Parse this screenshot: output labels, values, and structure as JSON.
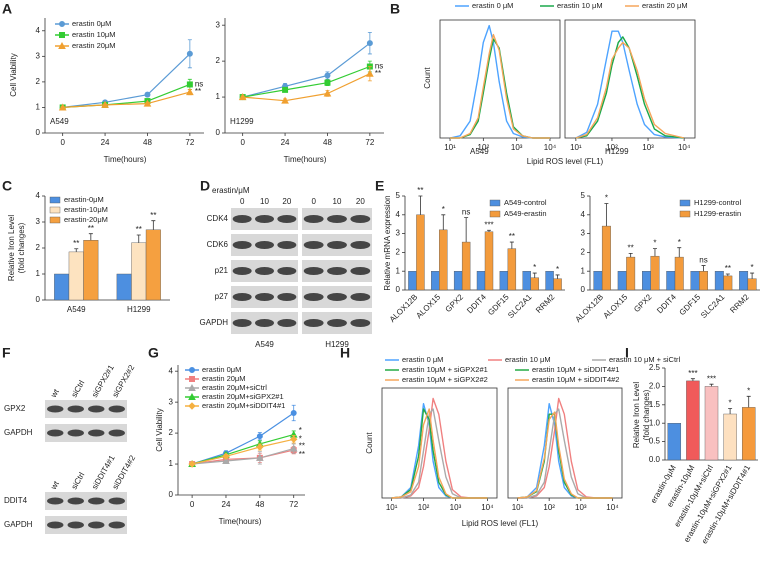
{
  "chart_data": [
    {
      "type": "line",
      "panel": "A",
      "subtitle": "A549",
      "xlabel": "Time(hours)",
      "ylabel": "Cell Viability",
      "x": [
        0,
        24,
        48,
        72
      ],
      "xlim": [
        -10,
        80
      ],
      "xticks": [
        0,
        24,
        48,
        72
      ],
      "ylim": [
        0,
        4.5
      ],
      "yticks": [
        0,
        1,
        2,
        3,
        4
      ],
      "series": [
        {
          "name": "erastin 0μM",
          "color": "#5b9bd5",
          "marker": "circle",
          "values": [
            1,
            1.2,
            1.5,
            3.1
          ],
          "errors": [
            0.03,
            0.05,
            0.08,
            0.55
          ]
        },
        {
          "name": "erastin 10μM",
          "color": "#33cc33",
          "marker": "square",
          "values": [
            1,
            1.1,
            1.25,
            1.9
          ],
          "errors": [
            0.03,
            0.05,
            0.06,
            0.2
          ],
          "significance": "ns"
        },
        {
          "name": "erastin 20μM",
          "color": "#f0a030",
          "marker": "triangle",
          "values": [
            1,
            1.1,
            1.15,
            1.6
          ],
          "errors": [
            0.03,
            0.04,
            0.05,
            0.1
          ],
          "significance": "**"
        }
      ]
    },
    {
      "type": "line",
      "subtitle": "H1299",
      "xlabel": "Time(hours)",
      "x": [
        0,
        24,
        48,
        72
      ],
      "xlim": [
        -10,
        80
      ],
      "xticks": [
        0,
        24,
        48,
        72
      ],
      "ylim": [
        0,
        3.2
      ],
      "yticks": [
        0,
        1,
        2,
        3
      ],
      "series": [
        {
          "color": "#5b9bd5",
          "marker": "circle",
          "values": [
            1,
            1.3,
            1.6,
            2.5
          ],
          "errors": [
            0.03,
            0.08,
            0.1,
            0.3
          ]
        },
        {
          "color": "#33cc33",
          "marker": "square",
          "values": [
            1,
            1.2,
            1.4,
            1.85
          ],
          "errors": [
            0.03,
            0.05,
            0.08,
            0.15
          ],
          "significance": "ns"
        },
        {
          "color": "#f0a030",
          "marker": "triangle",
          "values": [
            1,
            0.9,
            1.1,
            1.65
          ],
          "errors": [
            0.03,
            0.05,
            0.08,
            0.2
          ],
          "significance": "**"
        }
      ]
    },
    {
      "type": "line",
      "panel": "B",
      "subtitle": "A549",
      "xlabel": "Lipid ROS level (FL1)",
      "ylabel": "Count",
      "xscale": "log",
      "frame": true,
      "x": [
        10,
        20,
        40,
        70,
        100,
        150,
        200,
        300,
        500,
        800,
        1500,
        3000,
        10000
      ],
      "xlim": [
        5,
        20000
      ],
      "xticks": [
        {
          "value": 10,
          "label": "10¹"
        },
        {
          "value": 100,
          "label": "10²"
        },
        {
          "value": 1000,
          "label": "10³"
        },
        {
          "value": 10000,
          "label": "10⁴"
        }
      ],
      "ylim": [
        0,
        105
      ],
      "series": [
        {
          "name": "erastin 0 μM",
          "color": "#4da3ff",
          "values": [
            0,
            2,
            15,
            55,
            85,
            100,
            85,
            50,
            15,
            4,
            1,
            0,
            0
          ]
        },
        {
          "name": "erastin 10 μM",
          "color": "#1aa84a",
          "values": [
            0,
            0,
            3,
            15,
            40,
            70,
            88,
            80,
            40,
            10,
            2,
            0,
            0
          ]
        },
        {
          "name": "erastin 20 μM",
          "color": "#f5a55a",
          "values": [
            0,
            0,
            4,
            18,
            45,
            75,
            92,
            78,
            35,
            8,
            2,
            0,
            0
          ]
        }
      ]
    },
    {
      "type": "line",
      "subtitle": "H1299",
      "xscale": "log",
      "frame": true,
      "x": [
        10,
        20,
        40,
        70,
        100,
        150,
        200,
        300,
        500,
        800,
        1500,
        3000,
        10000
      ],
      "xlim": [
        5,
        20000
      ],
      "xticks": [
        {
          "value": 10,
          "label": "10¹"
        },
        {
          "value": 100,
          "label": "10²"
        },
        {
          "value": 1000,
          "label": "10³"
        },
        {
          "value": 10000,
          "label": "10⁴"
        }
      ],
      "ylim": [
        0,
        105
      ],
      "series": [
        {
          "color": "#4da3ff",
          "values": [
            0,
            5,
            30,
            70,
            95,
            95,
            85,
            60,
            30,
            12,
            3,
            1,
            0
          ]
        },
        {
          "color": "#1aa84a",
          "values": [
            0,
            2,
            15,
            40,
            65,
            85,
            90,
            80,
            55,
            30,
            8,
            2,
            0
          ]
        },
        {
          "color": "#f5a55a",
          "values": [
            0,
            3,
            18,
            45,
            70,
            80,
            85,
            80,
            60,
            35,
            12,
            4,
            0
          ]
        }
      ]
    },
    {
      "type": "bar",
      "panel": "C",
      "ylabel": [
        "Relative Iron Level",
        "(fold changes)"
      ],
      "categories": [
        "A549",
        "H1299"
      ],
      "ylim": [
        0,
        4
      ],
      "yticks": [
        0,
        1,
        2,
        3,
        4
      ],
      "series": [
        {
          "name": "erastin-0μM",
          "color": "#4d8fe0",
          "values": [
            1,
            1
          ]
        },
        {
          "name": "erastin-10μM",
          "color": "#fde3c0",
          "values": [
            1.85,
            2.2
          ],
          "errors": [
            0.12,
            0.3
          ],
          "significance": [
            "**",
            "**"
          ]
        },
        {
          "name": "erastin-20μM",
          "color": "#f5a040",
          "values": [
            2.3,
            2.7
          ],
          "errors": [
            0.25,
            0.35
          ],
          "significance": [
            "**",
            "**"
          ]
        }
      ]
    },
    {
      "type": "bar",
      "panel": "E",
      "ylabel": "Relative mRNA expression",
      "categories": [
        "ALOX12B",
        "ALOX15",
        "GPX2",
        "DDIT4",
        "GDF15",
        "SLC2A1",
        "RRM2"
      ],
      "ylim": [
        0,
        5
      ],
      "yticks": [
        0,
        1,
        2,
        3,
        4,
        5
      ],
      "series": [
        {
          "name": "A549-control",
          "color": "#4d8fe0",
          "values": [
            1,
            1,
            1,
            1,
            1,
            1,
            1
          ]
        },
        {
          "name": "A549-erastin",
          "color": "#f39b3c",
          "values": [
            4,
            3.2,
            2.55,
            3.1,
            2.2,
            0.65,
            0.6
          ],
          "errors": [
            1.0,
            0.8,
            1.3,
            0.08,
            0.35,
            0.25,
            0.2
          ],
          "significance": [
            "**",
            "*",
            "ns",
            "***",
            "**",
            "*",
            "*"
          ]
        }
      ]
    },
    {
      "type": "bar",
      "categories": [
        "ALOX12B",
        "ALOX15",
        "GPX2",
        "DDIT4",
        "GDF15",
        "SLC2A1",
        "RRM2"
      ],
      "ylim": [
        0,
        5
      ],
      "yticks": [
        0,
        1,
        2,
        3,
        4,
        5
      ],
      "series": [
        {
          "name": "H1299-control",
          "color": "#4d8fe0",
          "values": [
            1,
            1,
            1,
            1,
            1,
            1,
            1
          ]
        },
        {
          "name": "H1299-erastin",
          "color": "#f39b3c",
          "values": [
            3.4,
            1.75,
            1.8,
            1.75,
            1.0,
            0.75,
            0.6
          ],
          "errors": [
            1.2,
            0.2,
            0.4,
            0.5,
            0.3,
            0.1,
            0.3
          ],
          "significance": [
            "*",
            "**",
            "*",
            "*",
            "ns",
            "**",
            "*"
          ]
        }
      ]
    },
    {
      "type": "line",
      "panel": "G",
      "xlabel": "Time(hours)",
      "ylabel": "Cell Viability",
      "x": [
        0,
        24,
        48,
        72
      ],
      "xlim": [
        -10,
        80
      ],
      "xticks": [
        0,
        24,
        48,
        72
      ],
      "ylim": [
        0,
        4.2
      ],
      "yticks": [
        0,
        1,
        2,
        3,
        4
      ],
      "series": [
        {
          "name": "erastin 0μM",
          "color": "#4a90e2",
          "marker": "circle",
          "values": [
            1,
            1.35,
            1.9,
            2.65
          ],
          "errors": [
            0.03,
            0.08,
            0.12,
            0.25
          ]
        },
        {
          "name": "erastin 20μM",
          "color": "#f08080",
          "marker": "square",
          "values": [
            1,
            1.15,
            1.2,
            1.45
          ],
          "errors": [
            0.03,
            0.06,
            0.15,
            0.12
          ],
          "significance": "**"
        },
        {
          "name": "erastin 20μM+siCtrl",
          "color": "#aaaaaa",
          "marker": "triangle",
          "values": [
            1,
            1.1,
            1.2,
            1.5
          ],
          "errors": [
            0.03,
            0.06,
            0.2,
            0.15
          ],
          "significance": "**"
        },
        {
          "name": "erastin 20μM+siGPX2#1",
          "color": "#33cc33",
          "marker": "triangle",
          "values": [
            1,
            1.3,
            1.65,
            1.95
          ],
          "errors": [
            0.03,
            0.06,
            0.1,
            0.12
          ],
          "significance": "*"
        },
        {
          "name": "erastin 20μM+siDDIT4#1",
          "color": "#f5b041",
          "marker": "diamond",
          "values": [
            1,
            1.25,
            1.55,
            1.8
          ],
          "errors": [
            0.03,
            0.06,
            0.1,
            0.12
          ],
          "significance": "*"
        }
      ]
    },
    {
      "type": "line",
      "panel": "H",
      "xlabel": "Lipid ROS level (FL1)",
      "ylabel": "Count",
      "xscale": "log",
      "frame": true,
      "x": [
        10,
        20,
        40,
        70,
        100,
        150,
        200,
        300,
        500,
        800,
        1500,
        3000,
        10000
      ],
      "xlim": [
        5,
        20000
      ],
      "xticks": [
        {
          "value": 10,
          "label": "10¹"
        },
        {
          "value": 100,
          "label": "10²"
        },
        {
          "value": 1000,
          "label": "10³"
        },
        {
          "value": 10000,
          "label": "10⁴"
        }
      ],
      "ylim": [
        0,
        105
      ],
      "series": [
        {
          "name": "erastin 0 μM",
          "color": "#4da3ff",
          "values": [
            0,
            1,
            10,
            50,
            90,
            70,
            35,
            10,
            2,
            0,
            0,
            0,
            0
          ]
        },
        {
          "name": "erastin 10 μM",
          "color": "#f08080",
          "values": [
            0,
            0,
            2,
            10,
            30,
            65,
            95,
            80,
            35,
            8,
            1,
            0,
            0
          ]
        },
        {
          "name": "erastin 10 μM + siCtrl",
          "color": "#aaaaaa",
          "values": [
            0,
            0,
            3,
            15,
            45,
            80,
            85,
            55,
            20,
            4,
            0,
            0,
            0
          ]
        },
        {
          "name": "erastin 10μM + siGPX2#1",
          "color": "#22aa44",
          "values": [
            0,
            1,
            8,
            40,
            85,
            75,
            45,
            15,
            3,
            0,
            0,
            0,
            0
          ]
        },
        {
          "name": "erastin 10μM + siGPX2#2",
          "color": "#f5a55a",
          "values": [
            0,
            1,
            6,
            30,
            70,
            85,
            55,
            20,
            4,
            0,
            0,
            0,
            0
          ]
        }
      ]
    },
    {
      "type": "line",
      "xscale": "log",
      "frame": true,
      "x": [
        10,
        20,
        40,
        70,
        100,
        150,
        200,
        300,
        500,
        800,
        1500,
        3000,
        10000
      ],
      "xlim": [
        5,
        20000
      ],
      "xticks": [
        {
          "value": 10,
          "label": "10¹"
        },
        {
          "value": 100,
          "label": "10²"
        },
        {
          "value": 1000,
          "label": "10³"
        },
        {
          "value": 10000,
          "label": "10⁴"
        }
      ],
      "ylim": [
        0,
        105
      ],
      "series": [
        {
          "color": "#4da3ff",
          "values": [
            0,
            1,
            10,
            50,
            90,
            70,
            35,
            10,
            2,
            0,
            0,
            0,
            0
          ]
        },
        {
          "color": "#f08080",
          "values": [
            0,
            0,
            2,
            10,
            30,
            65,
            95,
            80,
            35,
            8,
            1,
            0,
            0
          ]
        },
        {
          "color": "#aaaaaa",
          "values": [
            0,
            0,
            3,
            15,
            45,
            80,
            85,
            55,
            20,
            4,
            0,
            0,
            0
          ]
        },
        {
          "name": "erastin 10μM + siDDIT4#1",
          "color": "#22aa44",
          "values": [
            0,
            1,
            6,
            35,
            80,
            80,
            45,
            15,
            3,
            0,
            0,
            0,
            0
          ]
        },
        {
          "name": "erastin 10μM + siDDIT4#2",
          "color": "#f5a55a",
          "values": [
            0,
            1,
            7,
            38,
            75,
            82,
            50,
            18,
            4,
            0,
            0,
            0,
            0
          ]
        }
      ]
    },
    {
      "type": "bar",
      "panel": "I",
      "ylabel": [
        "Relative Iron Level",
        "(fold changes)"
      ],
      "categories": [
        "erastin-0μM",
        "erastin-10μM",
        "erastin-10μM+siCtrl",
        "erastin-10μM+siGPX2#1",
        "erastin-10μM+siDDIT4#1"
      ],
      "ylim": [
        0,
        2.5
      ],
      "yticks": [
        {
          "value": 0,
          "label": "0.0"
        },
        0.5,
        {
          "value": 1,
          "label": "1.0"
        },
        1.5,
        {
          "value": 2,
          "label": "2.0"
        },
        2.5
      ],
      "series": [
        {
          "colors": [
            "#4d8fe0",
            "#f05a5a",
            "#f9c0c0",
            "#fde0c0",
            "#f59a3c"
          ],
          "values": [
            1,
            2.15,
            2.0,
            1.25,
            1.43
          ],
          "errors": [
            null,
            0.06,
            0.06,
            0.15,
            0.3
          ],
          "significance": [
            null,
            "***",
            "***",
            "*",
            "*"
          ]
        }
      ]
    }
  ],
  "blots": [
    {
      "panel": "D",
      "treatment": "erastin/μM",
      "rows": [
        "CDK4",
        "CDK6",
        "p21",
        "p27",
        "GAPDH"
      ],
      "groups": [
        {
          "lanes": [
            "0",
            "10",
            "20"
          ],
          "cell": "A549"
        },
        {
          "lanes": [
            "0",
            "10",
            "20"
          ],
          "cell": "H1299"
        }
      ]
    },
    {
      "panel": "F",
      "groups": [
        {
          "lanes": [
            "wt",
            "siCtrl",
            "siGPX2#1",
            "siGPX2#2"
          ],
          "rows": [
            "GPX2",
            "GAPDH"
          ]
        },
        {
          "lanes": [
            "wt",
            "siCtrl",
            "siDDIT4#1",
            "siDDIT4#2"
          ],
          "rows": [
            "DDIT4",
            "GAPDH"
          ]
        }
      ]
    }
  ]
}
